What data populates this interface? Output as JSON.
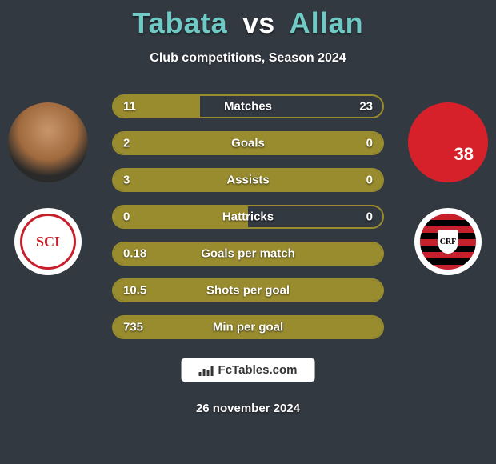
{
  "title": {
    "player1": "Tabata",
    "vs": "vs",
    "player2": "Allan",
    "player_color": "#6fcac6",
    "vs_color": "#ffffff"
  },
  "subtitle": "Club competitions, Season 2024",
  "stats": {
    "bar_fill_color": "#998c2e",
    "bar_border_color": "#998c2e",
    "rows": [
      {
        "label": "Matches",
        "left": "11",
        "right": "23",
        "fill_pct": 32
      },
      {
        "label": "Goals",
        "left": "2",
        "right": "0",
        "fill_pct": 100
      },
      {
        "label": "Assists",
        "left": "3",
        "right": "0",
        "fill_pct": 100
      },
      {
        "label": "Hattricks",
        "left": "0",
        "right": "0",
        "fill_pct": 50
      },
      {
        "label": "Goals per match",
        "left": "0.18",
        "right": "",
        "fill_pct": 100
      },
      {
        "label": "Shots per goal",
        "left": "10.5",
        "right": "",
        "fill_pct": 100
      },
      {
        "label": "Min per goal",
        "left": "735",
        "right": "",
        "fill_pct": 100
      }
    ]
  },
  "player_right_number": "38",
  "watermark": "FcTables.com",
  "date": "26 november 2024",
  "colors": {
    "background": "#333941",
    "text": "#ffffff"
  }
}
